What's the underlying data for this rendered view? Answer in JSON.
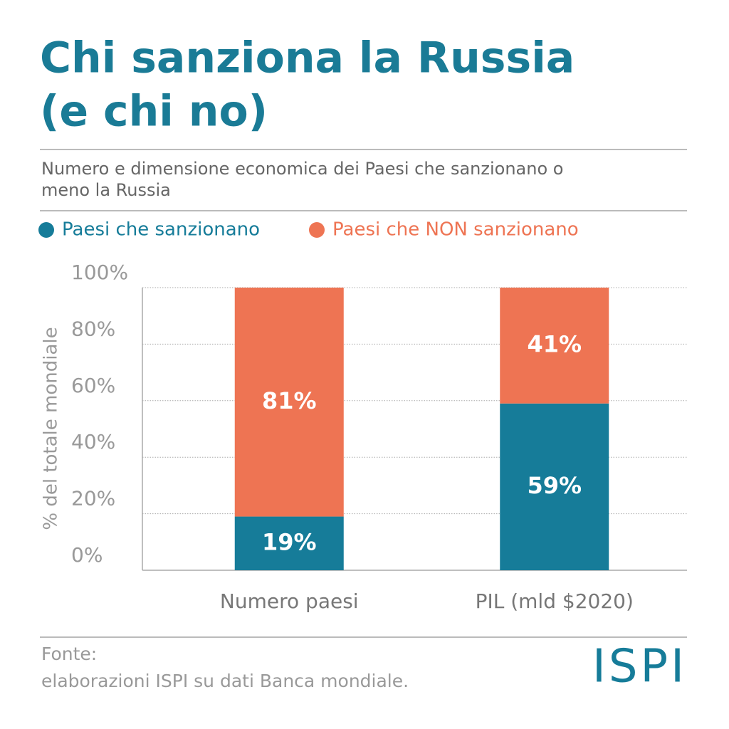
{
  "chart_data": {
    "type": "stacked_bar",
    "title": [
      "Chi sanziona la Russia",
      "(e chi no)"
    ],
    "subtitle": [
      "Numero e dimensione economica dei Paesi che sanzionano o",
      "meno la Russia"
    ],
    "ylabel": "% del totale mondiale",
    "categories": [
      "Numero paesi",
      "PIL (mld $2020)"
    ],
    "series": [
      {
        "name": "Paesi che sanzionano",
        "color": "#167c99",
        "values": [
          19,
          59
        ],
        "value_labels": [
          "19%",
          "59%"
        ]
      },
      {
        "name": "Paesi che NON sanzionano",
        "color": "#ee7453",
        "values": [
          81,
          41
        ],
        "value_labels": [
          "81%",
          "41%"
        ]
      }
    ],
    "ylim": [
      0,
      100
    ],
    "yticks": [
      {
        "value": 0,
        "label": "0%"
      },
      {
        "value": 20,
        "label": "20%"
      },
      {
        "value": 40,
        "label": "40%"
      },
      {
        "value": 60,
        "label": "60%"
      },
      {
        "value": 80,
        "label": "80%"
      },
      {
        "value": 100,
        "label": "100%"
      }
    ],
    "grid": true,
    "source": [
      "Fonte:",
      "elaborazioni ISPI su dati Banca mondiale."
    ],
    "logo": "ISPI"
  }
}
